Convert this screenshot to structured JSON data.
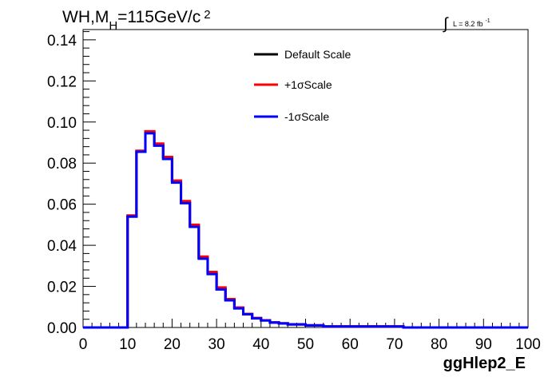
{
  "chart_data": {
    "type": "line",
    "title": {
      "main": "WH,M",
      "subscript": "H",
      "rest": "=115GeV/c",
      "superscript": "2"
    },
    "lumi": {
      "symbol": "∫",
      "text": "L = 8.2 fb",
      "superscript": "-1"
    },
    "xlabel": "ggHlep2_E",
    "ylabel": "",
    "xlim": [
      0,
      100
    ],
    "ylim": [
      0,
      0.145
    ],
    "x_ticks": [
      "0",
      "10",
      "20",
      "30",
      "40",
      "50",
      "60",
      "70",
      "80",
      "90",
      "100"
    ],
    "y_ticks": [
      "0.00",
      "0.02",
      "0.04",
      "0.06",
      "0.08",
      "0.10",
      "0.12",
      "0.14"
    ],
    "bin_edges": [
      0,
      2,
      4,
      6,
      8,
      10,
      12,
      14,
      16,
      18,
      20,
      22,
      24,
      26,
      28,
      30,
      32,
      34,
      36,
      38,
      40,
      42,
      44,
      46,
      48,
      50,
      52,
      54,
      56,
      58,
      60,
      62,
      64,
      66,
      68,
      70,
      72,
      74,
      76,
      78,
      80,
      82,
      84,
      86,
      88,
      90,
      92,
      94,
      96,
      98,
      100
    ],
    "series": [
      {
        "name": "Default Scale",
        "color": "#000000",
        "values": [
          0,
          0,
          0,
          0,
          0,
          0.054,
          0.0855,
          0.095,
          0.089,
          0.0825,
          0.071,
          0.061,
          0.0495,
          0.034,
          0.0265,
          0.019,
          0.0135,
          0.0095,
          0.0065,
          0.0045,
          0.0035,
          0.0025,
          0.002,
          0.0015,
          0.0015,
          0.001,
          0.001,
          0.0005,
          0.0005,
          0.0005,
          0.0005,
          0.0005,
          0.0005,
          0.0005,
          0.0005,
          0.0005,
          0,
          0,
          0,
          0,
          0,
          0,
          0,
          0,
          0,
          0,
          0,
          0,
          0,
          0
        ]
      },
      {
        "name": "+1σScale",
        "color": "#ff0000",
        "values": [
          0,
          0,
          0,
          0,
          0,
          0.0545,
          0.086,
          0.0955,
          0.0895,
          0.083,
          0.0715,
          0.0615,
          0.05,
          0.0345,
          0.027,
          0.0195,
          0.0138,
          0.0097,
          0.0066,
          0.0046,
          0.0035,
          0.0025,
          0.002,
          0.0015,
          0.0015,
          0.001,
          0.001,
          0.0005,
          0.0005,
          0.0005,
          0.0005,
          0.0005,
          0.0005,
          0.0005,
          0.0005,
          0.0005,
          0,
          0,
          0,
          0,
          0,
          0,
          0,
          0,
          0,
          0,
          0,
          0,
          0,
          0
        ]
      },
      {
        "name": "-1σScale",
        "color": "#0000ff",
        "values": [
          0,
          0,
          0,
          0,
          0,
          0.054,
          0.0855,
          0.0945,
          0.0885,
          0.082,
          0.0705,
          0.0605,
          0.049,
          0.0335,
          0.026,
          0.0185,
          0.0132,
          0.0093,
          0.0064,
          0.0044,
          0.0034,
          0.0024,
          0.002,
          0.0015,
          0.0015,
          0.001,
          0.001,
          0.0005,
          0.0005,
          0.0005,
          0.0005,
          0.0005,
          0.0005,
          0.0005,
          0.0005,
          0.0005,
          0,
          0,
          0,
          0,
          0,
          0,
          0,
          0,
          0,
          0,
          0,
          0,
          0,
          0
        ]
      }
    ],
    "legend_placement": "top-center",
    "grid": false
  }
}
